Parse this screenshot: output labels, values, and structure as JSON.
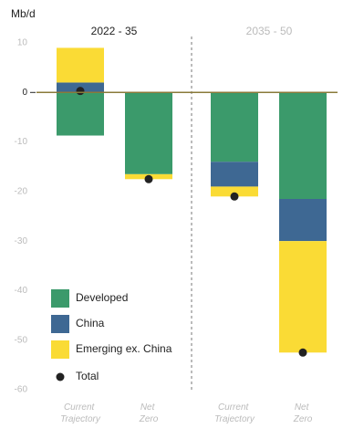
{
  "chart_data": {
    "type": "stacked_bar",
    "y_label": "Mb/d",
    "groups": [
      "2022 - 35",
      "2035 - 50"
    ],
    "categories": [
      "Current Trajectory",
      "Net Zero",
      "Current Trajectory",
      "Net Zero"
    ],
    "series": [
      {
        "name": "Developed",
        "color": "#3b9a6b",
        "values": [
          -8.7,
          -16.5,
          -14,
          -21.5
        ]
      },
      {
        "name": "China",
        "color": "#3e6893",
        "values": [
          2,
          0,
          -5,
          -8.5
        ]
      },
      {
        "name": "Emerging ex. China",
        "color": "#fadb35",
        "values": [
          7,
          -1,
          -2,
          -22.5
        ]
      }
    ],
    "total": {
      "name": "Total",
      "color": "#222222",
      "values": [
        0.3,
        -17.5,
        -21,
        -52.5
      ]
    },
    "ylim": [
      -60,
      10
    ],
    "yticks": [
      10,
      0,
      -10,
      -20,
      -30,
      -40,
      -50,
      -60
    ]
  }
}
